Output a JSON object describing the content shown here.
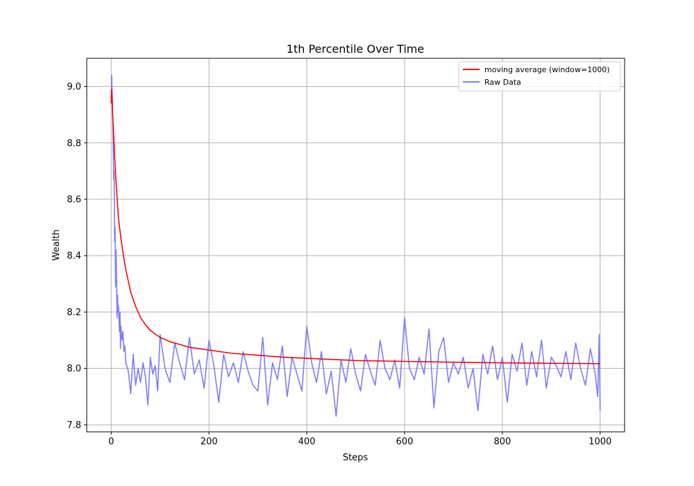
{
  "chart_data": {
    "type": "line",
    "title": "1th Percentile Over Time",
    "xlabel": "Steps",
    "ylabel": "Wealth",
    "xlim": [
      -50,
      1050
    ],
    "ylim": [
      7.775,
      9.1
    ],
    "x_ticks": [
      0,
      200,
      400,
      600,
      800,
      1000
    ],
    "y_ticks": [
      7.8,
      8.0,
      8.2,
      8.4,
      8.6,
      8.8,
      9.0
    ],
    "grid": true,
    "legend_position": "top-right",
    "series": [
      {
        "name": "moving average (window=1000)",
        "color": "#ff0000",
        "role": "moving_average",
        "x": [
          0,
          1,
          2,
          3,
          5,
          8,
          10,
          15,
          20,
          25,
          30,
          40,
          50,
          60,
          70,
          80,
          90,
          100,
          120,
          140,
          160,
          180,
          200,
          250,
          300,
          350,
          400,
          450,
          500,
          600,
          700,
          800,
          900,
          1000
        ],
        "values": [
          8.94,
          8.99,
          8.95,
          8.9,
          8.83,
          8.72,
          8.66,
          8.53,
          8.46,
          8.4,
          8.35,
          8.27,
          8.22,
          8.18,
          8.155,
          8.135,
          8.122,
          8.11,
          8.095,
          8.085,
          8.075,
          8.07,
          8.065,
          8.053,
          8.047,
          8.04,
          8.036,
          8.032,
          8.028,
          8.025,
          8.022,
          8.02,
          8.018,
          8.017
        ]
      },
      {
        "name": "Raw Data",
        "color": "#7b7bff",
        "role": "raw",
        "x": [
          0,
          1,
          2,
          3,
          4,
          5,
          6,
          7,
          8,
          9,
          10,
          11,
          12,
          13,
          14,
          15,
          16,
          17,
          18,
          19,
          20,
          22,
          24,
          26,
          28,
          30,
          35,
          40,
          45,
          50,
          55,
          60,
          65,
          70,
          75,
          80,
          85,
          90,
          95,
          100,
          110,
          120,
          130,
          140,
          150,
          160,
          170,
          180,
          190,
          200,
          210,
          220,
          230,
          240,
          250,
          260,
          270,
          280,
          290,
          300,
          310,
          320,
          330,
          340,
          350,
          360,
          370,
          380,
          390,
          400,
          410,
          420,
          430,
          440,
          450,
          460,
          470,
          480,
          490,
          500,
          510,
          520,
          530,
          540,
          550,
          560,
          570,
          580,
          590,
          600,
          610,
          620,
          630,
          640,
          650,
          660,
          670,
          680,
          690,
          700,
          710,
          720,
          730,
          740,
          750,
          760,
          770,
          780,
          790,
          800,
          810,
          820,
          830,
          840,
          850,
          860,
          870,
          880,
          890,
          900,
          910,
          920,
          930,
          940,
          950,
          960,
          970,
          980,
          990,
          995,
          998,
          1000
        ],
        "values": [
          8.94,
          9.04,
          8.97,
          8.9,
          8.8,
          8.67,
          8.7,
          8.45,
          8.5,
          8.29,
          8.42,
          8.31,
          8.18,
          8.26,
          8.2,
          8.22,
          8.17,
          8.13,
          8.2,
          8.07,
          8.15,
          8.1,
          8.13,
          8.06,
          8.08,
          8.02,
          7.99,
          7.91,
          8.05,
          7.94,
          8.0,
          7.95,
          8.02,
          7.97,
          7.87,
          8.04,
          7.98,
          8.01,
          7.92,
          8.12,
          8.0,
          7.95,
          8.09,
          8.02,
          7.96,
          8.11,
          7.98,
          8.03,
          7.93,
          8.1,
          8.01,
          7.88,
          8.05,
          7.97,
          8.02,
          7.95,
          8.06,
          7.99,
          7.94,
          7.92,
          8.11,
          7.87,
          8.02,
          7.96,
          8.08,
          7.9,
          8.04,
          7.98,
          7.92,
          8.15,
          8.02,
          7.95,
          8.06,
          7.91,
          7.99,
          7.83,
          8.03,
          7.95,
          8.07,
          7.98,
          7.92,
          8.05,
          7.99,
          7.94,
          8.1,
          8.0,
          7.96,
          8.03,
          7.93,
          8.18,
          8.0,
          7.96,
          8.04,
          7.98,
          8.14,
          7.86,
          8.06,
          8.11,
          7.95,
          8.02,
          7.98,
          8.04,
          7.93,
          8.0,
          7.85,
          8.05,
          7.98,
          8.08,
          7.96,
          8.04,
          7.88,
          8.05,
          7.99,
          8.09,
          7.94,
          8.06,
          7.97,
          8.1,
          7.93,
          8.04,
          8.01,
          7.97,
          8.06,
          7.96,
          8.09,
          8.0,
          7.94,
          8.07,
          7.98,
          7.9,
          8.12,
          7.85
        ]
      }
    ]
  }
}
